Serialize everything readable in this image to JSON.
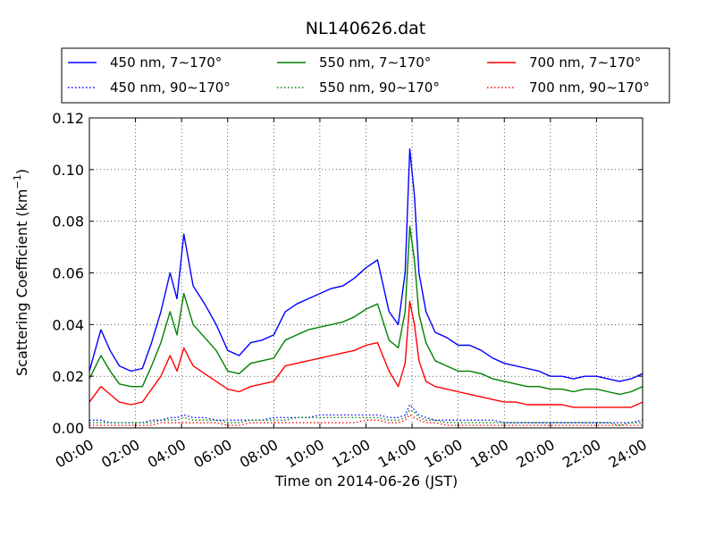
{
  "chart_data": {
    "type": "line",
    "title": "NL140626.dat",
    "xlabel": "Time on 2014-06-26 (JST)",
    "ylabel_main": "Scattering Coefficient (km",
    "ylabel_sup": "−1",
    "ylabel_end": ")",
    "ylim": [
      0,
      0.12
    ],
    "xlim": [
      "00:00",
      "24:00"
    ],
    "x_ticks": [
      "00:00",
      "02:00",
      "04:00",
      "06:00",
      "08:00",
      "10:00",
      "12:00",
      "14:00",
      "16:00",
      "18:00",
      "20:00",
      "22:00",
      "24:00"
    ],
    "y_ticks": [
      "0.00",
      "0.02",
      "0.04",
      "0.06",
      "0.08",
      "0.10",
      "0.12"
    ],
    "grid": true,
    "legend_position": "top",
    "x_hours": [
      0,
      0.5,
      0.9,
      1.3,
      1.8,
      2.3,
      2.7,
      3.1,
      3.5,
      3.8,
      4.1,
      4.5,
      5.0,
      5.5,
      6.0,
      6.5,
      7.0,
      7.5,
      8.0,
      8.5,
      9.0,
      9.5,
      10.0,
      10.5,
      11.0,
      11.5,
      12.0,
      12.5,
      13.0,
      13.4,
      13.7,
      13.9,
      14.1,
      14.3,
      14.6,
      15.0,
      15.5,
      16.0,
      16.5,
      17.0,
      17.5,
      18.0,
      18.5,
      19.0,
      19.5,
      20.0,
      20.5,
      21.0,
      21.5,
      22.0,
      22.5,
      23.0,
      23.5,
      24.0
    ],
    "series": [
      {
        "name": "450 nm, 7∼170°",
        "color": "#0000ff",
        "style": "solid",
        "values": [
          0.022,
          0.038,
          0.03,
          0.024,
          0.022,
          0.023,
          0.033,
          0.045,
          0.06,
          0.05,
          0.075,
          0.055,
          0.048,
          0.04,
          0.03,
          0.028,
          0.033,
          0.034,
          0.036,
          0.045,
          0.048,
          0.05,
          0.052,
          0.054,
          0.055,
          0.058,
          0.062,
          0.065,
          0.045,
          0.04,
          0.06,
          0.108,
          0.09,
          0.06,
          0.045,
          0.037,
          0.035,
          0.032,
          0.032,
          0.03,
          0.027,
          0.025,
          0.024,
          0.023,
          0.022,
          0.02,
          0.02,
          0.019,
          0.02,
          0.02,
          0.019,
          0.018,
          0.019,
          0.021
        ]
      },
      {
        "name": "550 nm, 7∼170°",
        "color": "#008000",
        "style": "solid",
        "values": [
          0.019,
          0.028,
          0.022,
          0.017,
          0.016,
          0.016,
          0.024,
          0.033,
          0.045,
          0.036,
          0.052,
          0.04,
          0.035,
          0.03,
          0.022,
          0.021,
          0.025,
          0.026,
          0.027,
          0.034,
          0.036,
          0.038,
          0.039,
          0.04,
          0.041,
          0.043,
          0.046,
          0.048,
          0.034,
          0.031,
          0.045,
          0.078,
          0.065,
          0.044,
          0.033,
          0.026,
          0.024,
          0.022,
          0.022,
          0.021,
          0.019,
          0.018,
          0.017,
          0.016,
          0.016,
          0.015,
          0.015,
          0.014,
          0.015,
          0.015,
          0.014,
          0.013,
          0.014,
          0.016
        ]
      },
      {
        "name": "700 nm, 7∼170°",
        "color": "#ff0000",
        "style": "solid",
        "values": [
          0.01,
          0.016,
          0.013,
          0.01,
          0.009,
          0.01,
          0.015,
          0.02,
          0.028,
          0.022,
          0.031,
          0.024,
          0.021,
          0.018,
          0.015,
          0.014,
          0.016,
          0.017,
          0.018,
          0.024,
          0.025,
          0.026,
          0.027,
          0.028,
          0.029,
          0.03,
          0.032,
          0.033,
          0.022,
          0.016,
          0.025,
          0.049,
          0.04,
          0.026,
          0.018,
          0.016,
          0.015,
          0.014,
          0.013,
          0.012,
          0.011,
          0.01,
          0.01,
          0.009,
          0.009,
          0.009,
          0.009,
          0.008,
          0.008,
          0.008,
          0.008,
          0.008,
          0.008,
          0.01
        ]
      },
      {
        "name": "450 nm, 90∼170°",
        "color": "#0000ff",
        "style": "dotted",
        "values": [
          0.003,
          0.003,
          0.002,
          0.002,
          0.002,
          0.002,
          0.003,
          0.003,
          0.004,
          0.004,
          0.005,
          0.004,
          0.004,
          0.003,
          0.003,
          0.003,
          0.003,
          0.003,
          0.004,
          0.004,
          0.004,
          0.004,
          0.005,
          0.005,
          0.005,
          0.005,
          0.005,
          0.005,
          0.004,
          0.004,
          0.005,
          0.009,
          0.007,
          0.005,
          0.004,
          0.003,
          0.003,
          0.003,
          0.003,
          0.003,
          0.003,
          0.002,
          0.002,
          0.002,
          0.002,
          0.002,
          0.002,
          0.002,
          0.002,
          0.002,
          0.002,
          0.002,
          0.002,
          0.003
        ]
      },
      {
        "name": "550 nm, 90∼170°",
        "color": "#008000",
        "style": "dotted",
        "values": [
          0.002,
          0.002,
          0.002,
          0.002,
          0.002,
          0.002,
          0.002,
          0.003,
          0.003,
          0.003,
          0.004,
          0.003,
          0.003,
          0.003,
          0.002,
          0.002,
          0.003,
          0.003,
          0.003,
          0.003,
          0.004,
          0.004,
          0.004,
          0.004,
          0.004,
          0.004,
          0.004,
          0.004,
          0.003,
          0.003,
          0.004,
          0.007,
          0.006,
          0.004,
          0.003,
          0.003,
          0.002,
          0.002,
          0.002,
          0.002,
          0.002,
          0.002,
          0.002,
          0.002,
          0.002,
          0.002,
          0.002,
          0.002,
          0.002,
          0.002,
          0.002,
          0.001,
          0.002,
          0.002
        ]
      },
      {
        "name": "700 nm, 90∼170°",
        "color": "#ff0000",
        "style": "dotted",
        "values": [
          0.001,
          0.001,
          0.001,
          0.001,
          0.001,
          0.001,
          0.001,
          0.002,
          0.002,
          0.002,
          0.002,
          0.002,
          0.002,
          0.002,
          0.001,
          0.001,
          0.002,
          0.002,
          0.002,
          0.002,
          0.002,
          0.002,
          0.002,
          0.002,
          0.002,
          0.002,
          0.003,
          0.003,
          0.002,
          0.002,
          0.003,
          0.005,
          0.004,
          0.003,
          0.002,
          0.002,
          0.001,
          0.001,
          0.001,
          0.001,
          0.001,
          0.001,
          0.001,
          0.001,
          0.001,
          0.001,
          0.001,
          0.001,
          0.001,
          0.001,
          0.001,
          0.001,
          0.001,
          0.001
        ]
      }
    ]
  }
}
